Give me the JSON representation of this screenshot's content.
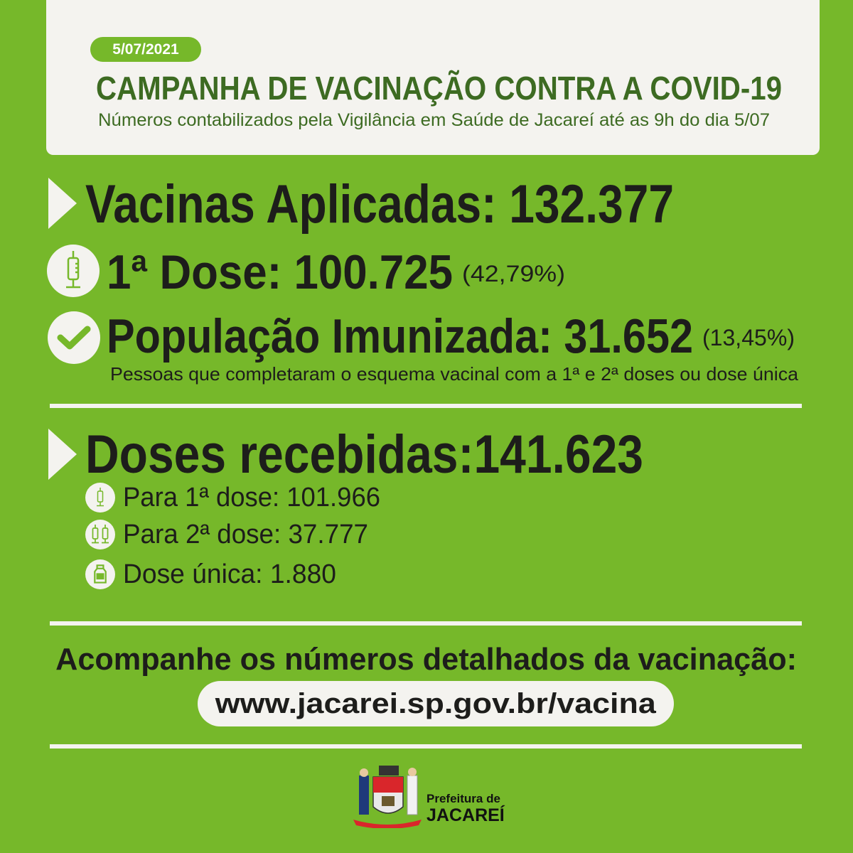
{
  "header": {
    "date": "5/07/2021",
    "title": "CAMPANHA DE VACINAÇÃO CONTRA A COVID-19",
    "subtitle": "Números contabilizados pela Vigilância em Saúde de Jacareí até as 9h do dia 5/07"
  },
  "applied": {
    "label": "Vacinas Aplicadas: 132.377",
    "first_dose": {
      "label": "1ª Dose: 100.725",
      "percent": "(42,79%)",
      "icon": "syringe-icon"
    },
    "immunized": {
      "label": "População Imunizada: 31.652",
      "percent": "(13,45%)",
      "icon": "check-icon",
      "note": "Pessoas que completaram o esquema vacinal com a 1ª e 2ª doses ou dose única"
    }
  },
  "received": {
    "label": "Doses recebidas:141.623",
    "items": [
      {
        "label": "Para 1ª dose: 101.966",
        "icon": "syringe-icon"
      },
      {
        "label": "Para 2ª dose: 37.777",
        "icon": "two-syringes-icon"
      },
      {
        "label": "Dose única: 1.880",
        "icon": "vial-icon"
      }
    ]
  },
  "footer": {
    "cta": "Acompanhe os números detalhados da vacinação:",
    "url": "www.jacarei.sp.gov.br/vacina",
    "logo_line1": "Prefeitura de",
    "logo_line2": "JACAREÍ"
  },
  "colors": {
    "background": "#76b82a",
    "card": "#f4f3ef",
    "title": "#3d6b22",
    "text": "#1d1d1b"
  }
}
